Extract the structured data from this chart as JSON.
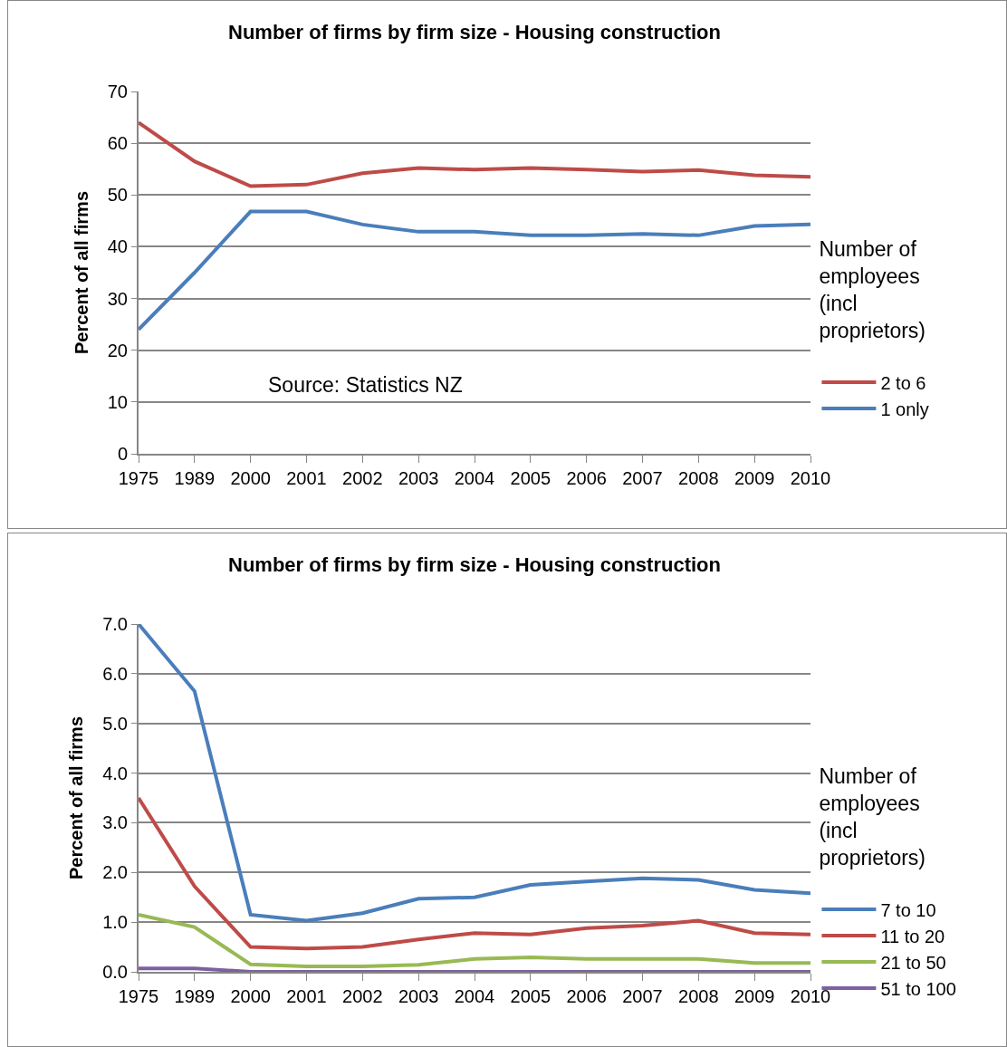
{
  "chart_data": [
    {
      "type": "line",
      "title": "Number of firms by firm size - Housing construction",
      "ylabel": "Percent of all firms",
      "legend_title": "Number of employees (incl proprietors)",
      "categories": [
        "1975",
        "1989",
        "2000",
        "2001",
        "2002",
        "2003",
        "2004",
        "2005",
        "2006",
        "2007",
        "2008",
        "2009",
        "2010"
      ],
      "series": [
        {
          "name": "2 to 6",
          "color": "#be4b48",
          "values": [
            64,
            56.5,
            51.7,
            52,
            54.2,
            55.2,
            54.9,
            55.2,
            54.9,
            54.5,
            54.8,
            53.8,
            53.5
          ]
        },
        {
          "name": "1 only",
          "color": "#4a7ebb",
          "values": [
            24,
            35,
            46.8,
            46.8,
            44.3,
            42.9,
            42.9,
            42.2,
            42.2,
            42.5,
            42.2,
            44,
            44.3
          ]
        }
      ],
      "ylim": [
        0,
        70
      ],
      "yticks": [
        0,
        10,
        20,
        30,
        40,
        50,
        60,
        70
      ],
      "grid": "y",
      "legend": "right",
      "marker": "none",
      "line_style": "solid",
      "annotations": [
        "Source: Statistics NZ"
      ]
    },
    {
      "type": "line",
      "title": "Number of firms by firm size - Housing construction",
      "ylabel": "Percent of all firms",
      "legend_title": "Number of employees (incl proprietors)",
      "categories": [
        "1975",
        "1989",
        "2000",
        "2001",
        "2002",
        "2003",
        "2004",
        "2005",
        "2006",
        "2007",
        "2008",
        "2009",
        "2010"
      ],
      "series": [
        {
          "name": "7 to 10",
          "color": "#4a7ebb",
          "values": [
            7.0,
            5.65,
            1.15,
            1.03,
            1.18,
            1.47,
            1.5,
            1.75,
            1.82,
            1.88,
            1.85,
            1.65,
            1.58
          ]
        },
        {
          "name": "11 to 20",
          "color": "#be4b48",
          "values": [
            3.5,
            1.72,
            0.5,
            0.47,
            0.5,
            0.65,
            0.78,
            0.75,
            0.88,
            0.93,
            1.03,
            0.78,
            0.75
          ]
        },
        {
          "name": "21 to 50",
          "color": "#98b954",
          "values": [
            1.15,
            0.9,
            0.15,
            0.11,
            0.11,
            0.14,
            0.26,
            0.29,
            0.26,
            0.26,
            0.26,
            0.18,
            0.18
          ]
        },
        {
          "name": "51 to 100",
          "color": "#7d60a0",
          "values": [
            0.07,
            0.07,
            0,
            0,
            0,
            0,
            0,
            0,
            0,
            0,
            0,
            0,
            0
          ]
        }
      ],
      "ylim": [
        0,
        7
      ],
      "yticks": [
        {
          "value": 0,
          "label": "0.0"
        },
        {
          "value": 1,
          "label": "1.0"
        },
        {
          "value": 2,
          "label": "2.0"
        },
        {
          "value": 3,
          "label": "3.0"
        },
        {
          "value": 4,
          "label": "4.0"
        },
        {
          "value": 5,
          "label": "5.0"
        },
        {
          "value": 6,
          "label": "6.0"
        },
        {
          "value": 7,
          "label": "7.0"
        }
      ],
      "grid": "y",
      "legend": "right",
      "marker": "none",
      "line_style": "solid"
    }
  ]
}
